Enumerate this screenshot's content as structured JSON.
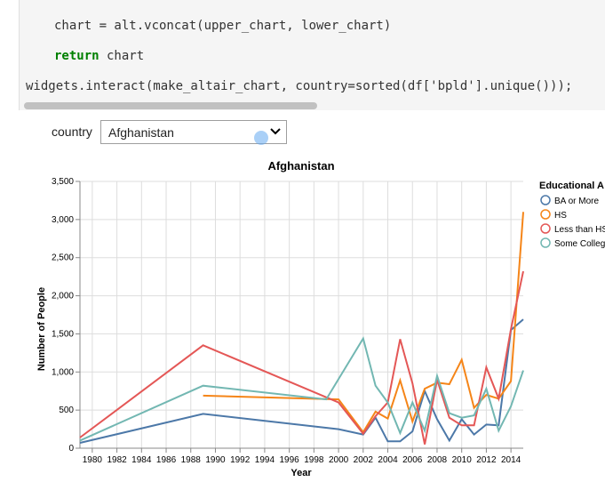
{
  "code": {
    "line1": "chart = alt.vconcat(upper_chart, lower_chart)",
    "line2_kw": "return",
    "line2_rest": " chart",
    "line3": "widgets.interact(make_altair_chart, country=sorted(df['bpld'].unique()));"
  },
  "widget": {
    "label": "country",
    "selected": "Afghanistan"
  },
  "colors": {
    "ba": "#4c78a8",
    "hs": "#f58518",
    "lt": "#e45756",
    "sc": "#72b7b2"
  },
  "chart_data": {
    "type": "line",
    "title": "Afghanistan",
    "xlabel": "Year",
    "ylabel": "Number of People",
    "xlim": [
      1979,
      2015
    ],
    "ylim": [
      0,
      3500
    ],
    "xticks": [
      1980,
      1982,
      1984,
      1986,
      1988,
      1990,
      1992,
      1994,
      1996,
      1998,
      2000,
      2002,
      2004,
      2006,
      2008,
      2010,
      2012,
      2014
    ],
    "yticks": [
      0,
      500,
      1000,
      1500,
      2000,
      2500,
      3000,
      3500
    ],
    "ytick_labels": [
      "0",
      "500",
      "1,000",
      "1,500",
      "2,000",
      "2,500",
      "3,000",
      "3,500"
    ],
    "grid": true,
    "legend_title": "Educational A",
    "legend_position": "right",
    "series": [
      {
        "name": "BA or More",
        "color_key": "ba",
        "x": [
          1979,
          1989,
          2000,
          2002,
          2003,
          2004,
          2005,
          2006,
          2007,
          2008,
          2009,
          2010,
          2011,
          2012,
          2013,
          2014,
          2015
        ],
        "values": [
          70,
          450,
          250,
          180,
          400,
          90,
          90,
          220,
          750,
          380,
          100,
          380,
          180,
          310,
          300,
          1550,
          1690
        ]
      },
      {
        "name": "HS",
        "color_key": "hs",
        "x": [
          1989,
          2000,
          2002,
          2003,
          2004,
          2005,
          2006,
          2007,
          2008,
          2009,
          2010,
          2011,
          2012,
          2013,
          2014,
          2015
        ],
        "values": [
          690,
          640,
          210,
          480,
          390,
          890,
          350,
          780,
          860,
          840,
          1160,
          530,
          700,
          650,
          880,
          3100
        ]
      },
      {
        "name": "Less than HS",
        "color_key": "lt",
        "x": [
          1979,
          1989,
          2000,
          2002,
          2003,
          2004,
          2005,
          2006,
          2007,
          2008,
          2009,
          2010,
          2011,
          2012,
          2013,
          2014,
          2015
        ],
        "values": [
          140,
          1350,
          600,
          190,
          420,
          600,
          1430,
          850,
          50,
          900,
          400,
          300,
          300,
          1060,
          650,
          1560,
          2320
        ]
      },
      {
        "name": "Some College",
        "color_key": "sc",
        "x": [
          1979,
          1989,
          1999,
          2002,
          2003,
          2004,
          2005,
          2006,
          2007,
          2008,
          2009,
          2010,
          2011,
          2012,
          2013,
          2014,
          2015
        ],
        "values": [
          100,
          820,
          640,
          1440,
          820,
          600,
          200,
          600,
          230,
          950,
          460,
          400,
          430,
          780,
          230,
          550,
          1020
        ]
      }
    ]
  },
  "legend_labels": [
    "BA or More",
    "HS",
    "Less than HS",
    "Some College"
  ]
}
